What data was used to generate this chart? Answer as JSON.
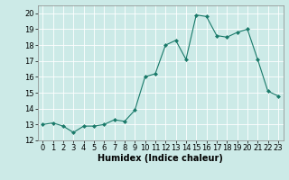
{
  "x": [
    0,
    1,
    2,
    3,
    4,
    5,
    6,
    7,
    8,
    9,
    10,
    11,
    12,
    13,
    14,
    15,
    16,
    17,
    18,
    19,
    20,
    21,
    22,
    23
  ],
  "y": [
    13.0,
    13.1,
    12.9,
    12.5,
    12.9,
    12.9,
    13.0,
    13.3,
    13.2,
    13.9,
    16.0,
    16.2,
    18.0,
    18.3,
    17.1,
    19.9,
    19.8,
    18.6,
    18.5,
    18.8,
    19.0,
    17.1,
    15.1,
    14.8
  ],
  "line_color": "#1a7a6a",
  "marker": "D",
  "marker_size": 2,
  "bg_color": "#cceae7",
  "grid_color": "#ffffff",
  "xlabel": "Humidex (Indice chaleur)",
  "xlim": [
    -0.5,
    23.5
  ],
  "ylim": [
    12,
    20.5
  ],
  "yticks": [
    12,
    13,
    14,
    15,
    16,
    17,
    18,
    19,
    20
  ],
  "xticks": [
    0,
    1,
    2,
    3,
    4,
    5,
    6,
    7,
    8,
    9,
    10,
    11,
    12,
    13,
    14,
    15,
    16,
    17,
    18,
    19,
    20,
    21,
    22,
    23
  ],
  "label_fontsize": 7,
  "tick_fontsize": 6
}
